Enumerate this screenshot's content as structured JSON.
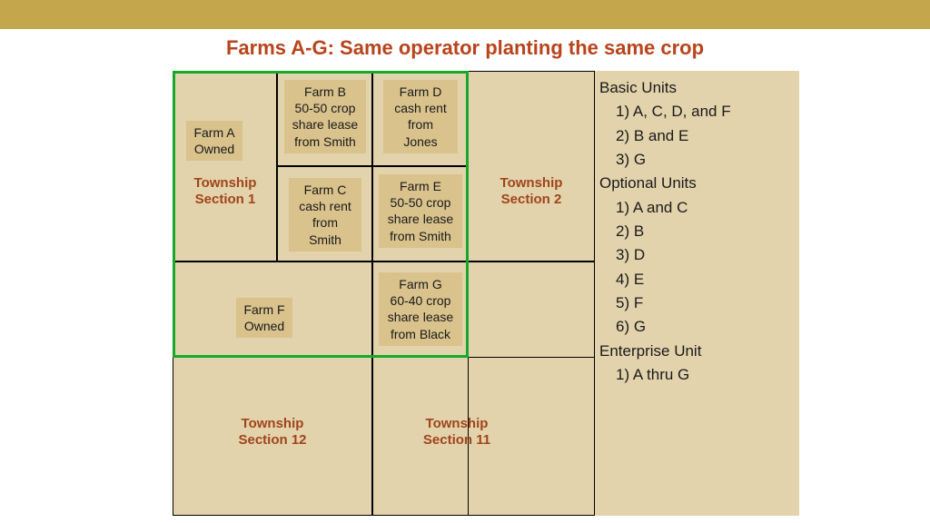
{
  "colors": {
    "top_bar": "#c4a74d",
    "background_panel": "#e2d3ac",
    "farm_box": "#d9c28c",
    "title_text": "#b9431b",
    "township_text": "#a0441b",
    "grid_border": "#000000",
    "highlight_border": "#17a82a"
  },
  "title": "Farms A-G: Same operator planting the same crop",
  "farms": {
    "A": "Farm A\nOwned",
    "B": "Farm B\n50-50 crop\nshare lease\nfrom Smith",
    "C": "Farm C\ncash rent\nfrom\nSmith",
    "D": "Farm D\ncash rent\nfrom\nJones",
    "E": "Farm E\n50-50 crop\nshare lease\nfrom Smith",
    "F": "Farm F\nOwned",
    "G": "Farm G\n60-40 crop\nshare lease\nfrom Black"
  },
  "townships": {
    "s1": "Township\nSection 1",
    "s2": "Township\nSection 2",
    "s11": "Township\nSection 11",
    "s12": "Township\nSection 12"
  },
  "list": {
    "basic_hdr": "Basic Units",
    "basic": [
      "1) A, C, D, and F",
      "2) B and E",
      "3) G"
    ],
    "optional_hdr": "Optional Units",
    "optional": [
      "1) A and C",
      "2) B",
      "3) D",
      "4) E",
      "5) F",
      "6) G"
    ],
    "enterprise_hdr": "Enterprise Unit",
    "enterprise": [
      "1) A thru G"
    ]
  },
  "layout": {
    "diagram_width": 465,
    "diagram_height": 490,
    "col_split_1": 115,
    "col_split_2": 220,
    "col_split_3": 325,
    "row_split_1": 105,
    "row_split_2": 210,
    "row_split_3": 315
  }
}
